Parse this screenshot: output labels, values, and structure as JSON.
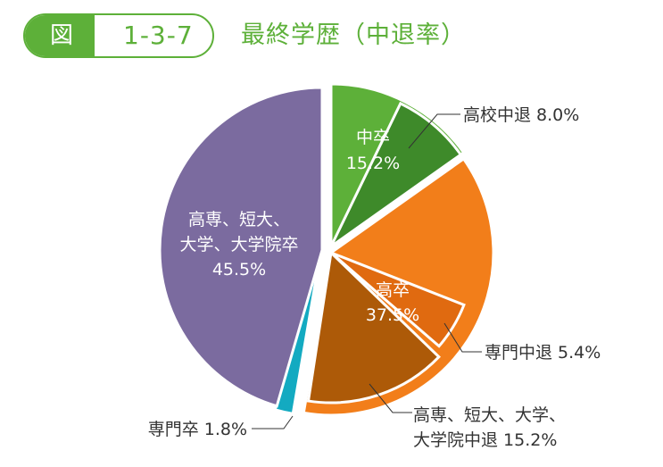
{
  "header": {
    "badge_label": "図",
    "figure_number": "1-3-7",
    "title": "最終学歴（中退率）"
  },
  "colors": {
    "accent": "#5db039",
    "junior_high": "#5db039",
    "junior_high_dropout": "#3e8a2a",
    "high_school": "#f27e1a",
    "high_school_dropout": "#e06a10",
    "higher_ed_dropout": "#ad5a08",
    "vocational": "#13aac1",
    "higher_ed": "#7b6b9f"
  },
  "chart_data": {
    "type": "pie",
    "title": "最終学歴（中退率）",
    "slices": [
      {
        "label": "中卒",
        "value": 15.2,
        "display": "15.2%"
      },
      {
        "label": "高卒",
        "value": 37.5,
        "display": "37.5%"
      },
      {
        "label": "専門卒",
        "value": 1.8,
        "display": "1.8%"
      },
      {
        "label": "高専、短大、大学、大学院卒",
        "value": 45.5,
        "display": "45.5%"
      }
    ],
    "inner_labels": {
      "junior_high": [
        "中卒",
        "15.2%"
      ],
      "high_school": [
        "高卒",
        "37.5%"
      ],
      "higher_ed": [
        "高専、短大、",
        "大学、大学院卒",
        "45.5%"
      ]
    },
    "dropout_breakdown": [
      {
        "label": "高校中退",
        "value": 8.0,
        "text": "高校中退 8.0%"
      },
      {
        "label": "専門中退",
        "value": 5.4,
        "text": "専門中退 5.4%"
      },
      {
        "label": "高専、短大、大学、大学院中退",
        "value": 15.2,
        "text_lines": [
          "高専、短大、大学、",
          "大学院中退 15.2%"
        ]
      }
    ],
    "external_labels": {
      "vocational": "専門卒 1.8%"
    }
  }
}
